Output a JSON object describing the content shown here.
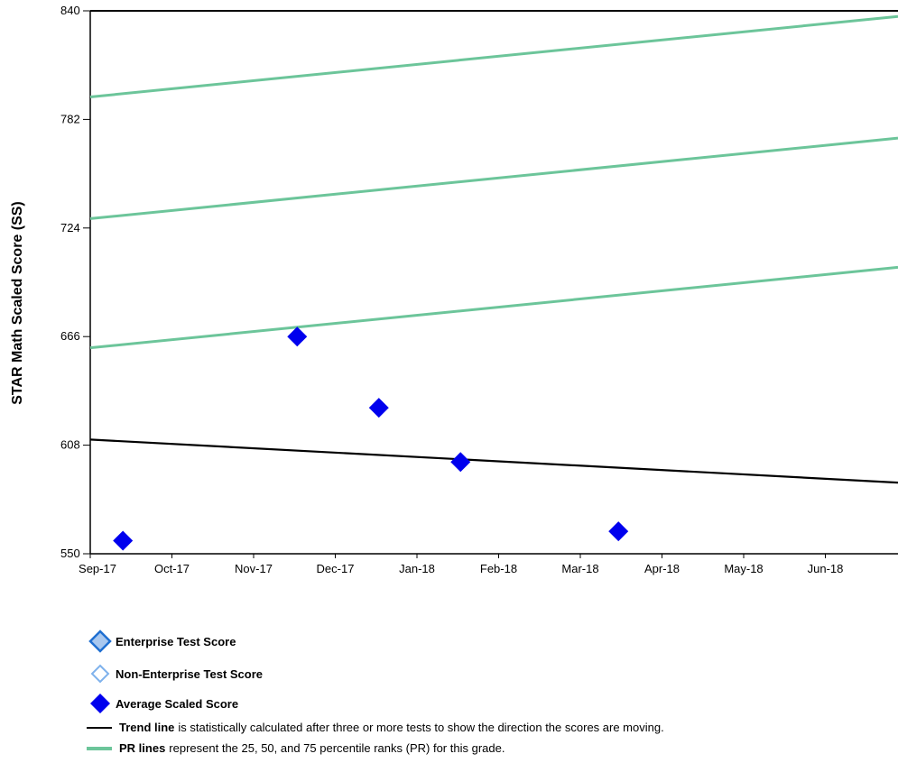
{
  "chart_data": {
    "type": "scatter",
    "ylabel": "STAR Math Scaled Score (SS)",
    "xlabel": "",
    "ylim": [
      550,
      840
    ],
    "yticks": [
      550,
      608,
      666,
      724,
      782,
      840
    ],
    "x_start": "Sep-17",
    "x_end": "Jun-18 end",
    "xticks": [
      "Sep-17",
      "Oct-17",
      "Nov-17",
      "Dec-17",
      "Jan-18",
      "Feb-18",
      "Mar-18",
      "Apr-18",
      "May-18",
      "Jun-18"
    ],
    "grid": false,
    "series": [
      {
        "name": "Average Scaled Score",
        "kind": "points",
        "color": "#0000ee",
        "points": [
          {
            "x": "Sep-17 +12d",
            "y": 557
          },
          {
            "x": "Nov-17 +16d",
            "y": 666
          },
          {
            "x": "Dec-17 +16d",
            "y": 628
          },
          {
            "x": "Jan-18 +16d",
            "y": 599
          },
          {
            "x": "Mar-18 +14d",
            "y": 562
          }
        ]
      },
      {
        "name": "Trend line",
        "kind": "line",
        "color": "#000000",
        "y_start": 611,
        "y_end": 588
      },
      {
        "name": "PR lines 25",
        "kind": "line",
        "color": "#6cc59a",
        "y_start": 660,
        "y_end": 703
      },
      {
        "name": "PR lines 50",
        "kind": "line",
        "color": "#6cc59a",
        "y_start": 729,
        "y_end": 772
      },
      {
        "name": "PR lines 75",
        "kind": "line",
        "color": "#6cc59a",
        "y_start": 794,
        "y_end": 837
      }
    ]
  },
  "legend": {
    "enterprise": "Enterprise Test Score",
    "non_enterprise": "Non-Enterprise Test Score",
    "average": "Average Scaled Score",
    "trend_bold": "Trend line",
    "trend_desc": "is statistically calculated after three or more tests to show the direction the scores are moving.",
    "pr_bold": "PR lines",
    "pr_desc": "represent the 25, 50, and 75 percentile ranks (PR) for this grade."
  },
  "colors": {
    "enterprise_fill": "#a9c8ef",
    "enterprise_stroke": "#1f6fd1",
    "non_enterprise_stroke": "#7fb2ec",
    "average_fill": "#0000ee",
    "trend": "#000000",
    "pr": "#6cc59a"
  }
}
